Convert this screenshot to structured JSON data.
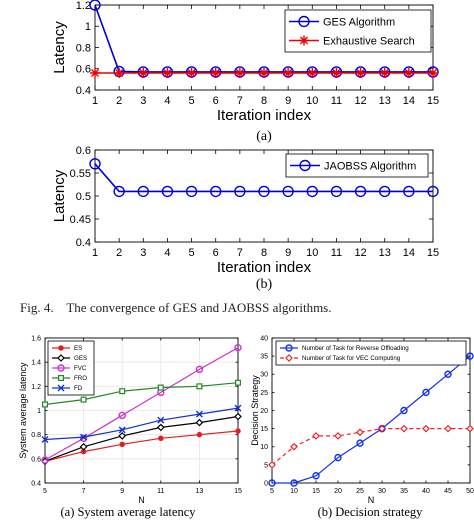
{
  "figure_caption": "Fig. 4.    The convergence of GES and JAOBSS algorithms.",
  "panel_labels": {
    "a": "(a)",
    "b": "(b)"
  },
  "subcaptions": {
    "left": "(a)  System average latency",
    "right": "(b)  Decision strategy"
  },
  "chart_data": [
    {
      "type": "line",
      "panel": "(a)",
      "xlabel": "Iteration index",
      "ylabel": "Latency",
      "xlim": [
        1,
        15
      ],
      "ylim": [
        0.4,
        1.2
      ],
      "xticks": [
        1,
        2,
        3,
        4,
        5,
        6,
        7,
        8,
        9,
        10,
        11,
        12,
        13,
        14,
        15
      ],
      "yticks": [
        0.4,
        0.6,
        0.8,
        1,
        1.2
      ],
      "grid": false,
      "legend_position": "top-right",
      "x": [
        1,
        2,
        3,
        4,
        5,
        6,
        7,
        8,
        9,
        10,
        11,
        12,
        13,
        14,
        15
      ],
      "series": [
        {
          "name": "GES Algorithm",
          "color": "#0000dd",
          "marker": "circle",
          "values": [
            1.2,
            0.575,
            0.57,
            0.57,
            0.57,
            0.57,
            0.57,
            0.57,
            0.57,
            0.57,
            0.57,
            0.57,
            0.57,
            0.57,
            0.57
          ]
        },
        {
          "name": "Exhaustive Search",
          "color": "#ee0000",
          "marker": "star",
          "values": [
            0.56,
            0.56,
            0.56,
            0.56,
            0.56,
            0.56,
            0.56,
            0.56,
            0.56,
            0.56,
            0.56,
            0.56,
            0.56,
            0.56,
            0.56
          ]
        }
      ]
    },
    {
      "type": "line",
      "panel": "(b)",
      "xlabel": "Iteration index",
      "ylabel": "Latency",
      "xlim": [
        1,
        15
      ],
      "ylim": [
        0.4,
        0.6
      ],
      "xticks": [
        1,
        2,
        3,
        4,
        5,
        6,
        7,
        8,
        9,
        10,
        11,
        12,
        13,
        14,
        15
      ],
      "yticks": [
        0.4,
        0.45,
        0.5,
        0.55,
        0.6
      ],
      "grid": false,
      "legend_position": "top-right",
      "x": [
        1,
        2,
        3,
        4,
        5,
        6,
        7,
        8,
        9,
        10,
        11,
        12,
        13,
        14,
        15
      ],
      "series": [
        {
          "name": "JAOBSS Algorithm",
          "color": "#0000dd",
          "marker": "circle",
          "values": [
            0.57,
            0.51,
            0.51,
            0.51,
            0.51,
            0.51,
            0.51,
            0.51,
            0.51,
            0.51,
            0.51,
            0.51,
            0.51,
            0.51,
            0.51
          ]
        }
      ]
    },
    {
      "type": "line",
      "panel": "(a)  System average latency",
      "xlabel": "N",
      "ylabel": "System average latency",
      "xlim": [
        5,
        15
      ],
      "ylim": [
        0.4,
        1.6
      ],
      "xticks": [
        5,
        7,
        9,
        11,
        13,
        15
      ],
      "yticks": [
        0.4,
        0.6,
        0.8,
        1,
        1.2,
        1.4,
        1.6
      ],
      "grid": true,
      "legend_position": "top-left",
      "x": [
        5,
        7,
        9,
        11,
        13,
        15
      ],
      "series": [
        {
          "name": "ES",
          "color": "#e02020",
          "marker": "dot",
          "values": [
            0.58,
            0.66,
            0.72,
            0.77,
            0.8,
            0.83
          ]
        },
        {
          "name": "GES",
          "color": "#000000",
          "marker": "diamond",
          "values": [
            0.58,
            0.7,
            0.79,
            0.86,
            0.9,
            0.95
          ]
        },
        {
          "name": "FVC",
          "color": "#cc33cc",
          "marker": "circle",
          "values": [
            0.59,
            0.77,
            0.96,
            1.15,
            1.34,
            1.52
          ]
        },
        {
          "name": "FRO",
          "color": "#228822",
          "marker": "square",
          "values": [
            1.05,
            1.09,
            1.16,
            1.19,
            1.2,
            1.23
          ]
        },
        {
          "name": "FD",
          "color": "#1133cc",
          "marker": "x",
          "values": [
            0.76,
            0.78,
            0.84,
            0.92,
            0.97,
            1.02
          ]
        }
      ]
    },
    {
      "type": "line",
      "panel": "(b)  Decision strategy",
      "xlabel": "N",
      "ylabel": "Decision Strategy",
      "xlim": [
        5,
        50
      ],
      "ylim": [
        0,
        40
      ],
      "xticks": [
        5,
        10,
        15,
        20,
        25,
        30,
        35,
        40,
        45,
        50
      ],
      "xtick_labels": [
        "5",
        "10",
        "15",
        "20",
        "25",
        "30",
        "35",
        "40",
        "45",
        "50"
      ],
      "yticks": [
        0,
        5,
        10,
        15,
        20,
        25,
        30,
        35,
        40
      ],
      "grid": false,
      "legend_position": "top-left",
      "x": [
        5,
        10,
        15,
        20,
        25,
        30,
        35,
        40,
        45,
        50
      ],
      "series": [
        {
          "name": "Number of Task for Reverse Offloading",
          "color": "#1133ee",
          "marker": "circle",
          "line": "solid",
          "values": [
            0,
            0,
            2,
            7,
            11,
            15,
            20,
            25,
            30,
            35
          ]
        },
        {
          "name": "Number of Task for VEC Computing",
          "color": "#ee2222",
          "marker": "diamond",
          "line": "dashed",
          "values": [
            5,
            10,
            13,
            13,
            14,
            15,
            15,
            15,
            15,
            15
          ]
        }
      ]
    }
  ]
}
